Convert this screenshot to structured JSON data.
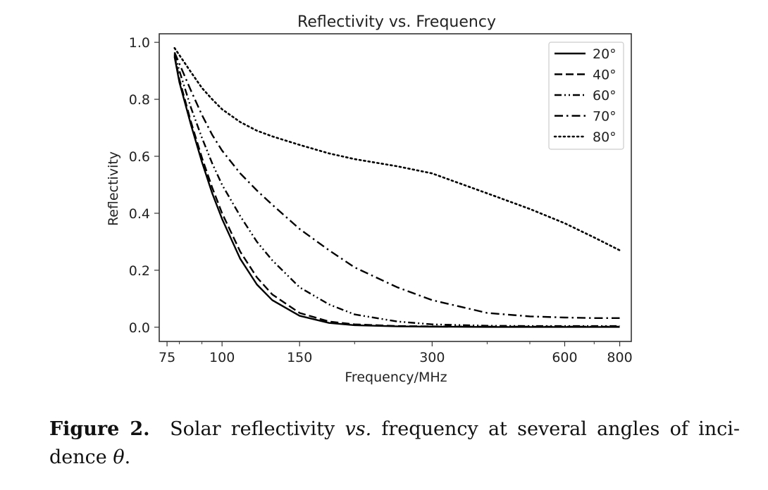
{
  "chart_data": {
    "type": "line",
    "title": "Reflectivity  vs. Frequency",
    "xlabel": "Frequency/MHz",
    "ylabel": "Reflectivity",
    "xscale": "log",
    "xlim": [
      72,
      850
    ],
    "ylim": [
      -0.05,
      1.03
    ],
    "xticks": [
      {
        "value": 75,
        "label": "75"
      },
      {
        "value": 100,
        "label": "100"
      },
      {
        "value": 150,
        "label": "150"
      },
      {
        "value": 300,
        "label": "300"
      },
      {
        "value": 600,
        "label": "600"
      },
      {
        "value": 800,
        "label": "800"
      }
    ],
    "yticks": [
      {
        "value": 0.0,
        "label": "0.0"
      },
      {
        "value": 0.2,
        "label": "0.2"
      },
      {
        "value": 0.4,
        "label": "0.4"
      },
      {
        "value": 0.6,
        "label": "0.6"
      },
      {
        "value": 0.8,
        "label": "0.8"
      },
      {
        "value": 1.0,
        "label": "1.0"
      }
    ],
    "grid": false,
    "legend_position": "top-right",
    "x": [
      78,
      80,
      85,
      90,
      95,
      100,
      110,
      120,
      130,
      150,
      175,
      200,
      250,
      300,
      400,
      500,
      600,
      700,
      800
    ],
    "series": [
      {
        "name": "20°",
        "style": "solid",
        "values": [
          0.95,
          0.86,
          0.71,
          0.58,
          0.47,
          0.38,
          0.24,
          0.15,
          0.095,
          0.04,
          0.015,
          0.007,
          0.003,
          0.002,
          0.001,
          0.001,
          0.001,
          0.001,
          0.001
        ]
      },
      {
        "name": "40°",
        "style": "dashed",
        "values": [
          0.955,
          0.87,
          0.72,
          0.595,
          0.49,
          0.4,
          0.265,
          0.175,
          0.115,
          0.05,
          0.02,
          0.01,
          0.004,
          0.003,
          0.002,
          0.002,
          0.002,
          0.002,
          0.002
        ]
      },
      {
        "name": "60°",
        "style": "dash-dot-dot",
        "values": [
          0.96,
          0.9,
          0.77,
          0.665,
          0.575,
          0.5,
          0.39,
          0.3,
          0.235,
          0.14,
          0.08,
          0.045,
          0.02,
          0.01,
          0.005,
          0.004,
          0.004,
          0.004,
          0.004
        ]
      },
      {
        "name": "70°",
        "style": "dash-dot",
        "values": [
          0.965,
          0.925,
          0.83,
          0.745,
          0.675,
          0.62,
          0.54,
          0.48,
          0.43,
          0.345,
          0.27,
          0.21,
          0.14,
          0.095,
          0.05,
          0.038,
          0.034,
          0.032,
          0.032
        ]
      },
      {
        "name": "80°",
        "style": "dotted",
        "values": [
          0.98,
          0.955,
          0.895,
          0.84,
          0.8,
          0.765,
          0.72,
          0.69,
          0.67,
          0.64,
          0.61,
          0.59,
          0.565,
          0.54,
          0.47,
          0.415,
          0.365,
          0.315,
          0.27
        ]
      }
    ]
  },
  "caption": {
    "label": "Figure 2.",
    "text_before": "Solar reflectivity",
    "emphasis": "vs.",
    "text_after": "frequency at several angles of inci­dence",
    "symbol": "θ",
    "end": "."
  }
}
